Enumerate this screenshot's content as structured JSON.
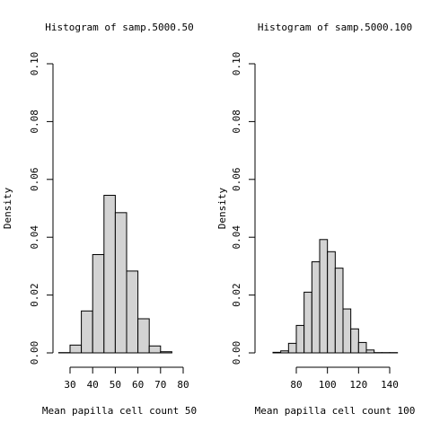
{
  "chart_data": [
    {
      "type": "bar",
      "title": "Histogram of samp.5000.50",
      "xlabel": "Mean papilla cell count 50",
      "ylabel": "Density",
      "ylim": [
        0,
        0.1
      ],
      "bin_edges": [
        25,
        30,
        35,
        40,
        45,
        50,
        55,
        60,
        65,
        70,
        75
      ],
      "values": [
        0.0001,
        0.0027,
        0.0145,
        0.034,
        0.0545,
        0.0485,
        0.0283,
        0.0118,
        0.0024,
        0.0004
      ],
      "x_ticks": [
        30,
        40,
        50,
        60,
        70,
        80
      ],
      "y_ticks": [
        0.0,
        0.02,
        0.04,
        0.06,
        0.08,
        0.1
      ],
      "x_tick_labels": [
        "30",
        "40",
        "50",
        "60",
        "70",
        "80"
      ],
      "y_tick_labels": [
        "0.00",
        "0.02",
        "0.04",
        "0.06",
        "0.08",
        "0.10"
      ],
      "bar_fill": "#d3d3d3"
    },
    {
      "type": "bar",
      "title": "Histogram of samp.5000.100",
      "xlabel": "Mean papilla cell count 100",
      "ylabel": "Density",
      "ylim": [
        0,
        0.1
      ],
      "bin_edges": [
        65,
        70,
        75,
        80,
        85,
        90,
        95,
        100,
        105,
        110,
        115,
        120,
        125,
        130,
        135,
        140,
        145
      ],
      "values": [
        0.0002,
        0.0007,
        0.0033,
        0.0095,
        0.021,
        0.0315,
        0.0392,
        0.035,
        0.0293,
        0.0152,
        0.0083,
        0.0036,
        0.001,
        0.0001,
        0.0001,
        0.0001
      ],
      "x_ticks": [
        80,
        100,
        120,
        140
      ],
      "y_ticks": [
        0.0,
        0.02,
        0.04,
        0.06,
        0.08,
        0.1
      ],
      "x_tick_labels": [
        "80",
        "100",
        "120",
        "140"
      ],
      "y_tick_labels": [
        "0.00",
        "0.02",
        "0.04",
        "0.06",
        "0.08",
        "0.10"
      ],
      "bar_fill": "#d3d3d3"
    }
  ]
}
